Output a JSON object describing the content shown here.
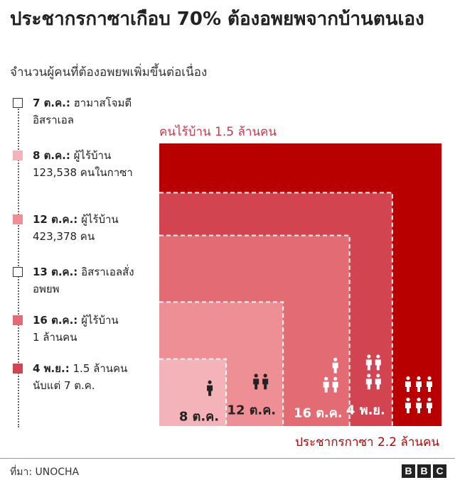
{
  "title": "ประชากรกาซาเกือบ 70% ต้องอพยพจากบ้านตนเอง",
  "subtitle": "จำนวนผู้คนที่ต้องอพยพเพิ่มขึ้นต่อเนื่อง",
  "timeline": [
    {
      "date": "7 ต.ค.:",
      "text": "ฮามาสโจมตี",
      "line2": "อิสราเอล",
      "color": "#ffffff"
    },
    {
      "date": "8 ต.ค.:",
      "text": "ผู้ไร้บ้าน",
      "line2": "123,538 คนในกาซา",
      "color": "#f3b3b8"
    },
    {
      "date": "12 ต.ค.:",
      "text": "ผู้ไร้บ้าน",
      "line2": "423,378 คน",
      "color": "#ee8f95"
    },
    {
      "date": "13 ต.ค.:",
      "text": "อิสราเอลสั่ง",
      "line2": "อพยพ",
      "color": "#ffffff"
    },
    {
      "date": "16 ต.ค.:",
      "text": "ผู้ไร้บ้าน",
      "line2": "1 ล้านคน",
      "color": "#e36b73"
    },
    {
      "date": "4 พ.ย.:",
      "text": "1.5 ล้านคน",
      "line2": "นับแต่ 7 ต.ค.",
      "color": "#d2444f"
    }
  ],
  "chart_data": {
    "type": "nested-area",
    "title": "คนไร้บ้าน 1.5 ล้านคน",
    "total_label": "ประชากรกาซา 2.2 ล้านคน",
    "total": 2200000,
    "total_color": "#b80000",
    "series": [
      {
        "label": "8 ต.ค.",
        "value": 123538,
        "color": "#f3b3b8"
      },
      {
        "label": "12 ต.ค.",
        "value": 423378,
        "color": "#ee8f95"
      },
      {
        "label": "16 ต.ค.",
        "value": 1000000,
        "color": "#e36b73"
      },
      {
        "label": "4 พ.ย.",
        "value": 1500000,
        "color": "#d2444f"
      }
    ]
  },
  "footer": {
    "source": "ที่มา: UNOCHA",
    "logo": [
      "B",
      "B",
      "C"
    ]
  }
}
